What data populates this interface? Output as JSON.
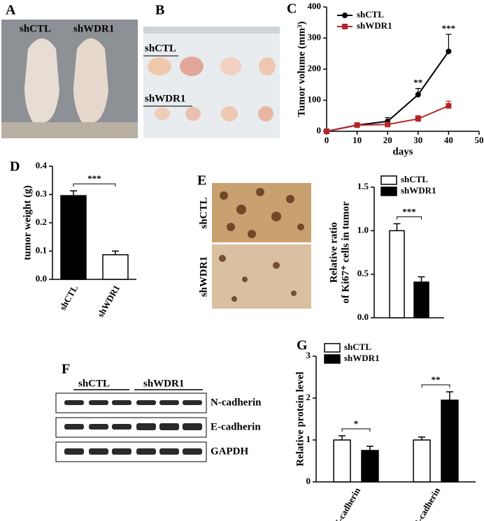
{
  "figure": {
    "panel_labels": [
      "A",
      "B",
      "C",
      "D",
      "E",
      "F",
      "G"
    ],
    "photo_a": [
      "shCTL",
      "shWDR1"
    ],
    "photo_b": [
      "shCTL",
      "shWDR1"
    ],
    "photo_e": [
      "shCTL",
      "shWDR1"
    ],
    "blot": {
      "groups": [
        "shCTL",
        "shWDR1"
      ],
      "rows": [
        "N-cadherin",
        "E-cadherin",
        "GAPDH"
      ]
    }
  },
  "chart_data": [
    {
      "type": "line",
      "ylabel": "Tumor volume (mm³)",
      "xlabel": "days",
      "x": [
        0,
        10,
        20,
        30,
        40
      ],
      "series": [
        {
          "name": "shCTL",
          "color": "#000000",
          "marker": "circle",
          "values": [
            0,
            20,
            32,
            118,
            257
          ],
          "errors": [
            2,
            4,
            12,
            20,
            55
          ]
        },
        {
          "name": "shWDR1",
          "color": "#b5262b",
          "marker": "square",
          "values": [
            0,
            20,
            22,
            40,
            82
          ],
          "errors": [
            2,
            4,
            6,
            10,
            15
          ]
        }
      ],
      "xlim": [
        0,
        50
      ],
      "xticks": [
        0,
        10,
        20,
        30,
        40,
        50
      ],
      "ylim": [
        0,
        400
      ],
      "yticks": [
        0,
        100,
        200,
        300,
        400
      ],
      "annotations": [
        {
          "text": "**",
          "x": 30
        },
        {
          "text": "***",
          "x": 40
        }
      ],
      "legend": "upper left"
    },
    {
      "type": "bar",
      "ylabel": "tumor weight (g)",
      "categories": [
        "shCTL",
        "shWDR1"
      ],
      "values": [
        0.296,
        0.087
      ],
      "errors": [
        0.017,
        0.013
      ],
      "colors": [
        "#000000",
        "#ffffff"
      ],
      "ylim": [
        0,
        0.4
      ],
      "yticks": [
        {
          "value": 0,
          "label": "0.0"
        },
        0.1,
        0.2,
        0.3,
        0.4
      ],
      "annotations": [
        {
          "text": "***"
        }
      ]
    },
    {
      "type": "bar",
      "ylabel": [
        "Relative ratio",
        "of Ki67⁺ cells in tumor"
      ],
      "categories": [
        null
      ],
      "series": [
        {
          "name": "shCTL",
          "color": "#ffffff",
          "values": [
            1.0
          ],
          "errors": [
            0.08
          ]
        },
        {
          "name": "shWDR1",
          "color": "#000000",
          "values": [
            0.41
          ],
          "errors": [
            0.06
          ]
        }
      ],
      "ylim": [
        0,
        1.5
      ],
      "yticks": [
        {
          "value": 0,
          "label": "0.0"
        },
        0.5,
        {
          "value": 1,
          "label": "1.0"
        },
        1.5
      ],
      "annotations": [
        {
          "text": "***"
        }
      ],
      "legend": "upper right"
    },
    {
      "type": "bar",
      "ylabel": "Relative protein level",
      "categories": [
        "N-cadherin",
        "E-cadherin"
      ],
      "series": [
        {
          "name": "shCTL",
          "color": "#ffffff",
          "values": [
            1.0,
            1.0
          ],
          "errors": [
            0.1,
            0.07
          ]
        },
        {
          "name": "shWDR1",
          "color": "#000000",
          "values": [
            0.75,
            1.95
          ],
          "errors": [
            0.1,
            0.2
          ]
        }
      ],
      "ylim": [
        0,
        3
      ],
      "yticks": [
        0,
        1,
        2,
        3
      ],
      "annotations": [
        {
          "text": "*"
        },
        {
          "text": "**"
        }
      ],
      "legend": "upper left"
    }
  ]
}
